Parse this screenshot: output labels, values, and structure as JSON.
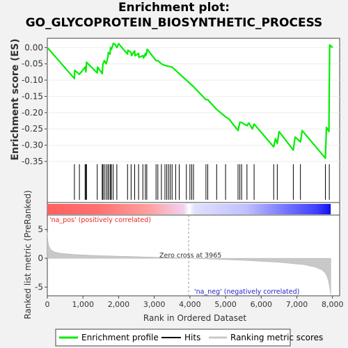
{
  "chart_data": {
    "type": "line",
    "title_line1": "Enrichment plot:",
    "title_line2": "GO_GLYCOPROTEIN_BIOSYNTHETIC_PROCESS",
    "es_panel": {
      "ylabel": "Enrichment score (ES)",
      "ylim": [
        -0.35,
        0.02
      ],
      "yticks": [
        "0.00",
        "-0.05",
        "-0.10",
        "-0.15",
        "-0.20",
        "-0.25",
        "-0.30",
        "-0.35"
      ],
      "ytick_values": [
        0,
        -0.05,
        -0.1,
        -0.15,
        -0.2,
        -0.25,
        -0.3,
        -0.35
      ],
      "series": [
        {
          "name": "Enrichment profile",
          "color": "#00ee00",
          "x": [
            0,
            760,
            770,
            900,
            1060,
            1080,
            1090,
            1100,
            1400,
            1410,
            1540,
            1560,
            1600,
            1650,
            1700,
            1710,
            1760,
            1770,
            1800,
            1850,
            1900,
            1950,
            2000,
            2250,
            2260,
            2350,
            2360,
            2450,
            2460,
            2560,
            2570,
            2680,
            2700,
            2750,
            2760,
            2790,
            2800,
            3050,
            3100,
            3200,
            3300,
            3500,
            3700,
            4100,
            4450,
            4500,
            4750,
            5000,
            5100,
            5350,
            5400,
            5450,
            5600,
            5650,
            5700,
            5750,
            5800,
            6350,
            6400,
            6450,
            6500,
            6900,
            6950,
            7100,
            7150,
            7800,
            7830,
            7900,
            7910,
            7920,
            8000
          ],
          "y": [
            0.0,
            -0.095,
            -0.07,
            -0.082,
            -0.06,
            -0.075,
            -0.065,
            -0.045,
            -0.078,
            -0.06,
            -0.08,
            -0.05,
            -0.04,
            -0.05,
            -0.03,
            -0.015,
            -0.02,
            0.0,
            -0.005,
            0.013,
            0.01,
            0.0,
            0.012,
            -0.02,
            -0.008,
            -0.015,
            -0.025,
            -0.01,
            -0.025,
            -0.018,
            -0.03,
            -0.025,
            -0.032,
            -0.018,
            -0.025,
            -0.015,
            -0.005,
            -0.04,
            -0.04,
            -0.05,
            -0.055,
            -0.06,
            -0.08,
            -0.12,
            -0.16,
            -0.16,
            -0.19,
            -0.213,
            -0.22,
            -0.255,
            -0.23,
            -0.23,
            -0.24,
            -0.232,
            -0.24,
            -0.25,
            -0.235,
            -0.305,
            -0.28,
            -0.295,
            -0.258,
            -0.315,
            -0.275,
            -0.29,
            -0.255,
            -0.34,
            -0.245,
            -0.258,
            -0.12,
            0.008,
            0.0
          ]
        }
      ]
    },
    "hits": {
      "legend": "Hits",
      "positions": [
        760,
        900,
        1060,
        1080,
        1100,
        1400,
        1540,
        1560,
        1600,
        1650,
        1700,
        1710,
        1760,
        1770,
        1800,
        1850,
        1950,
        2250,
        2350,
        2450,
        2560,
        2680,
        2750,
        2790,
        3050,
        3100,
        3200,
        3300,
        3350,
        3400,
        3450,
        3500,
        3600,
        3700,
        3900,
        4000,
        4050,
        4100,
        4450,
        4500,
        4750,
        5000,
        5350,
        5400,
        5450,
        5600,
        5800,
        6350,
        6450,
        6900,
        7100,
        7800,
        7910
      ]
    },
    "heatmap": {
      "pos_label": "'na_pos' (positively correlated)",
      "neg_label": "'na_neg' (negatively correlated)",
      "pos_color": "#ff2020",
      "neg_color": "#2020ff"
    },
    "metric_panel": {
      "ylabel": "Ranked list metric (PreRanked)",
      "ylim": [
        -6.5,
        7.5
      ],
      "yticks": [
        "5",
        "0",
        "-5"
      ],
      "ytick_values": [
        5,
        0,
        -5
      ],
      "zero_cross_label": "Zero cross at 3965",
      "zero_cross": 3965,
      "curve_x": [
        0,
        20,
        50,
        100,
        200,
        400,
        800,
        1500,
        2500,
        3500,
        3965,
        4500,
        5500,
        6500,
        7200,
        7500,
        7700,
        7800,
        7850,
        7900,
        7930,
        7950
      ],
      "curve_y": [
        4.5,
        2.8,
        2.0,
        1.5,
        1.1,
        0.85,
        0.65,
        0.45,
        0.28,
        0.1,
        0.0,
        -0.1,
        -0.35,
        -0.7,
        -1.1,
        -1.5,
        -2.0,
        -2.6,
        -3.2,
        -4.3,
        -5.5,
        -6.3
      ],
      "fill_color": "#c8c8c8"
    },
    "xaxis": {
      "label": "Rank in Ordered Dataset",
      "xlim": [
        0,
        8200
      ],
      "xticks": [
        "0",
        "1,000",
        "2,000",
        "3,000",
        "4,000",
        "5,000",
        "6,000",
        "7,000",
        "8,000"
      ],
      "xtick_values": [
        0,
        1000,
        2000,
        3000,
        4000,
        5000,
        6000,
        7000,
        8000
      ],
      "n_genes": 7950
    },
    "legend": {
      "placement": "bottom",
      "items": [
        "Enrichment profile",
        "Hits",
        "Ranking metric scores"
      ]
    }
  }
}
